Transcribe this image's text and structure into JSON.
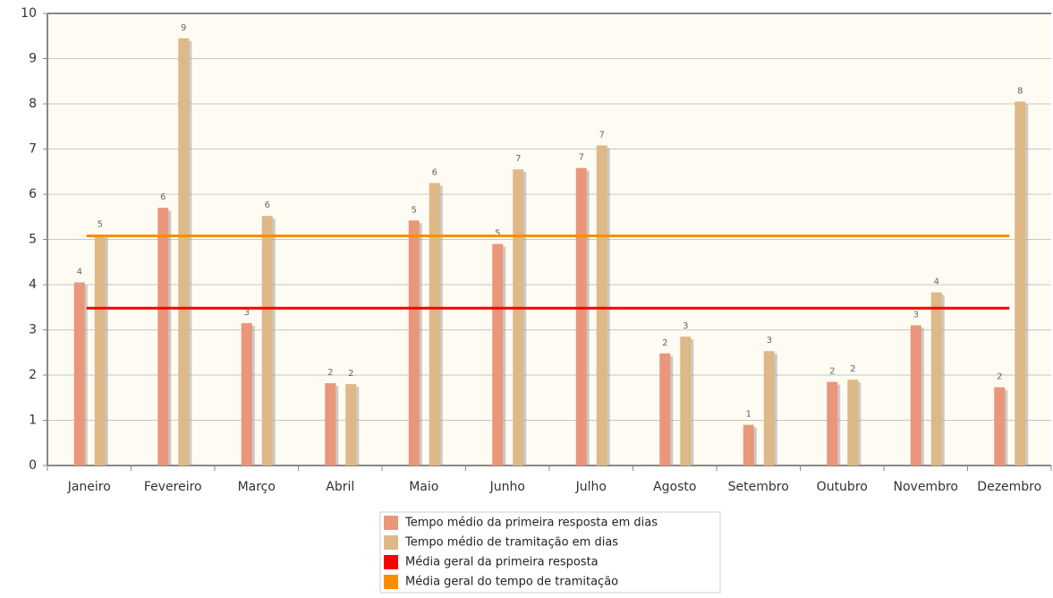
{
  "chart_data": {
    "type": "bar",
    "categories": [
      "Janeiro",
      "Fevereiro",
      "Março",
      "Abril",
      "Maio",
      "Junho",
      "Julho",
      "Agosto",
      "Setembro",
      "Outubro",
      "Novembro",
      "Dezembro"
    ],
    "series": [
      {
        "name": "Tempo médio da primeira resposta em dias",
        "color": "#e9967a",
        "values": [
          4.05,
          5.7,
          3.15,
          1.82,
          5.42,
          4.9,
          6.58,
          2.48,
          0.9,
          1.85,
          3.1,
          1.73
        ],
        "value_labels": [
          "4",
          "6",
          "3",
          "2",
          "5",
          "5",
          "7",
          "2",
          "1",
          "2",
          "3",
          "2"
        ]
      },
      {
        "name": "Tempo médio de tramitação em dias",
        "color": "#deb887",
        "values": [
          5.1,
          9.45,
          5.52,
          1.8,
          6.25,
          6.55,
          7.08,
          2.85,
          2.53,
          1.9,
          3.83,
          8.05
        ],
        "value_labels": [
          "5",
          "9",
          "6",
          "2",
          "6",
          "7",
          "7",
          "3",
          "3",
          "2",
          "4",
          "8"
        ]
      }
    ],
    "lines": [
      {
        "name": "Média geral da primeira resposta",
        "color": "#ff0000",
        "value": 3.48
      },
      {
        "name": "Média geral do tempo de tramitação",
        "color": "#ff8c00",
        "value": 5.08
      }
    ],
    "ylim": [
      0,
      10
    ],
    "yticks": [
      0,
      1,
      2,
      3,
      4,
      5,
      6,
      7,
      8,
      9,
      10
    ],
    "grid": true
  }
}
